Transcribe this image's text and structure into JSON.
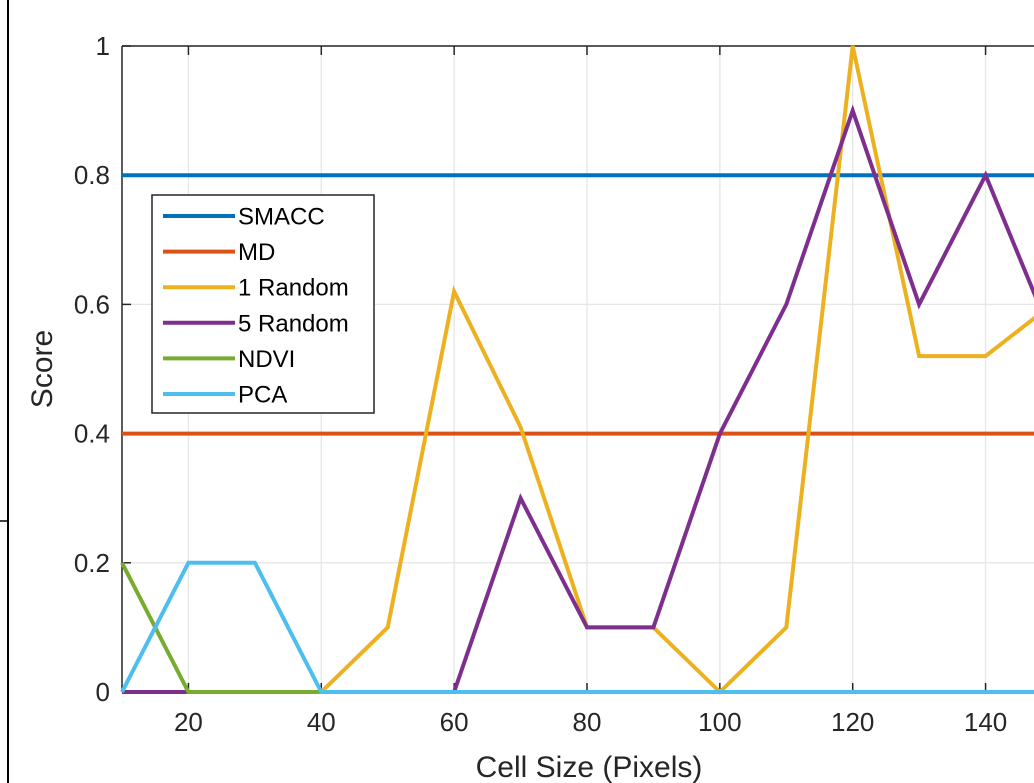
{
  "chart_data": {
    "type": "line",
    "xlabel": "Cell Size (Pixels)",
    "ylabel": "Score",
    "xlim": [
      10,
      150
    ],
    "ylim": [
      0,
      1
    ],
    "xticks": [
      20,
      40,
      60,
      80,
      100,
      120,
      140
    ],
    "yticks": [
      0,
      0.2,
      0.4,
      0.6,
      0.8,
      1
    ],
    "grid": true,
    "legend_position": "top-left",
    "x": [
      10,
      20,
      30,
      40,
      50,
      60,
      70,
      80,
      90,
      100,
      110,
      120,
      130,
      140,
      150
    ],
    "series": [
      {
        "name": "SMACC",
        "color": "#0072BD",
        "values": [
          0.8,
          0.8,
          0.8,
          0.8,
          0.8,
          0.8,
          0.8,
          0.8,
          0.8,
          0.8,
          0.8,
          0.8,
          0.8,
          0.8,
          0.8
        ]
      },
      {
        "name": "MD",
        "color": "#D95319",
        "values": [
          0.4,
          0.4,
          0.4,
          0.4,
          0.4,
          0.4,
          0.4,
          0.4,
          0.4,
          0.4,
          0.4,
          0.4,
          0.4,
          0.4,
          0.4
        ]
      },
      {
        "name": "1 Random",
        "color": "#EDB120",
        "values": [
          0,
          0,
          0,
          0,
          0.1,
          0.62,
          0.41,
          0.1,
          0.1,
          0,
          0.1,
          1,
          0.52,
          0.52,
          0.6
        ]
      },
      {
        "name": "5 Random",
        "color": "#7E2F8E",
        "values": [
          0,
          0,
          0,
          0,
          0,
          0,
          0.3,
          0.1,
          0.1,
          0.4,
          0.6,
          0.9,
          0.6,
          0.8,
          0.55
        ]
      },
      {
        "name": "NDVI",
        "color": "#77AC30",
        "values": [
          0.2,
          0,
          0,
          0,
          0,
          0,
          0,
          0,
          0,
          0,
          0,
          0,
          0,
          0,
          0
        ]
      },
      {
        "name": "PCA",
        "color": "#4DBEEE",
        "values": [
          0,
          0.2,
          0.2,
          0,
          0,
          0,
          0,
          0,
          0,
          0,
          0,
          0,
          0,
          0,
          0
        ]
      }
    ]
  }
}
